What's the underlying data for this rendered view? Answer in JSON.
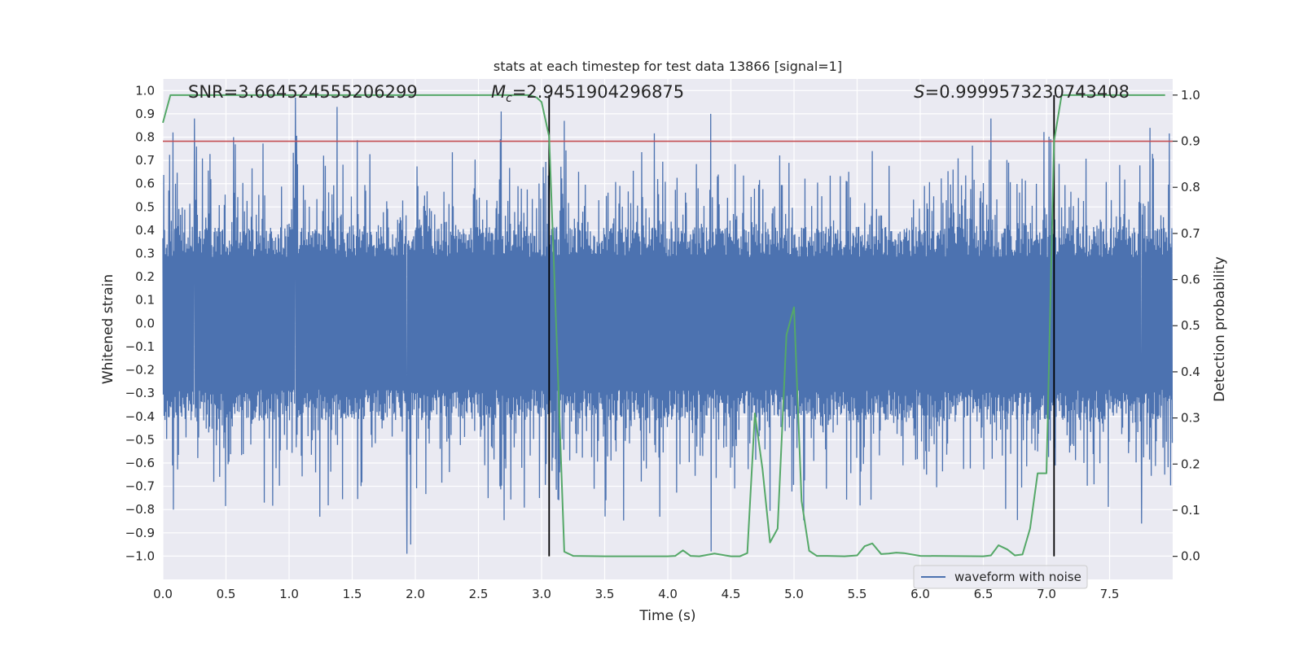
{
  "chart_data": {
    "type": "line",
    "title": "stats at each timestep for test data 13866 [signal=1]",
    "xlabel": "Time (s)",
    "ylabel_left": "Whitened strain",
    "ylabel_right": "Detection probability",
    "xlim": [
      0.0,
      8.0
    ],
    "ylim_left": [
      -1.1,
      1.05
    ],
    "ylim_right": [
      -0.05,
      1.035
    ],
    "x_ticks": [
      0.0,
      0.5,
      1.0,
      1.5,
      2.0,
      2.5,
      3.0,
      3.5,
      4.0,
      4.5,
      5.0,
      5.5,
      6.0,
      6.5,
      7.0,
      7.5
    ],
    "x_tick_labels": [
      "0.0",
      "0.5",
      "1.0",
      "1.5",
      "2.0",
      "2.5",
      "3.0",
      "3.5",
      "4.0",
      "4.5",
      "5.0",
      "5.5",
      "6.0",
      "6.5",
      "7.0",
      "7.5"
    ],
    "y_left_ticks": [
      -1.0,
      -0.9,
      -0.8,
      -0.7,
      -0.6,
      -0.5,
      -0.4,
      -0.3,
      -0.2,
      -0.1,
      0.0,
      0.1,
      0.2,
      0.3,
      0.4,
      0.5,
      0.6,
      0.7,
      0.8,
      0.9,
      1.0
    ],
    "y_left_tick_labels": [
      "−1.0",
      "−0.9",
      "−0.8",
      "−0.7",
      "−0.6",
      "−0.5",
      "−0.4",
      "−0.3",
      "−0.2",
      "−0.1",
      "0.0",
      "0.1",
      "0.2",
      "0.3",
      "0.4",
      "0.5",
      "0.6",
      "0.7",
      "0.8",
      "0.9",
      "1.0"
    ],
    "y_right_ticks": [
      0.0,
      0.1,
      0.2,
      0.3,
      0.4,
      0.5,
      0.6,
      0.7,
      0.8,
      0.9,
      1.0
    ],
    "y_right_tick_labels": [
      "0.0",
      "0.1",
      "0.2",
      "0.3",
      "0.4",
      "0.5",
      "0.6",
      "0.7",
      "0.8",
      "0.9",
      "1.0"
    ],
    "annotations": {
      "snr": "SNR=3.664524555206299",
      "mc_symbol": "M",
      "mc_sub": "c",
      "mc_value": "=2.9451904296875",
      "s_symbol": "S",
      "s_value": "=0.9999573230743408"
    },
    "threshold_line": {
      "axis": "right",
      "value": 0.9,
      "color": "#c44e52"
    },
    "vertical_lines": {
      "x": [
        3.06,
        7.06
      ],
      "color": "#000000"
    },
    "series": [
      {
        "name": "waveform with noise",
        "axis": "left",
        "color": "#4c72b0",
        "kind": "noise",
        "duration": 8.0,
        "core_abs_max": 0.38,
        "peak_positive_approx": 0.97,
        "peak_negative_approx": -0.99,
        "notable_peaks": [
          [
            0.08,
            0.82
          ],
          [
            0.25,
            0.88
          ],
          [
            1.05,
            0.97
          ],
          [
            1.38,
            0.93
          ],
          [
            2.68,
            0.91
          ],
          [
            3.18,
            0.87
          ],
          [
            4.34,
            0.9
          ],
          [
            6.56,
            0.88
          ],
          [
            7.82,
            0.84
          ]
        ],
        "notable_troughs": [
          [
            0.08,
            -0.8
          ],
          [
            0.8,
            -0.77
          ],
          [
            1.93,
            -0.99
          ],
          [
            1.96,
            -0.95
          ],
          [
            3.5,
            -0.83
          ],
          [
            4.34,
            -0.98
          ],
          [
            7.75,
            -0.86
          ]
        ]
      },
      {
        "name": "detection probability",
        "axis": "right",
        "color": "#55a868",
        "x": [
          0.0,
          0.06,
          0.2,
          0.5,
          1.0,
          1.5,
          2.0,
          2.5,
          2.9,
          2.96,
          3.0,
          3.06,
          3.12,
          3.18,
          3.25,
          3.5,
          4.0,
          4.06,
          4.12,
          4.18,
          4.25,
          4.37,
          4.5,
          4.57,
          4.63,
          4.69,
          4.75,
          4.81,
          4.87,
          4.94,
          5.0,
          5.06,
          5.12,
          5.18,
          5.25,
          5.4,
          5.5,
          5.56,
          5.62,
          5.69,
          5.75,
          5.81,
          5.87,
          6.0,
          6.5,
          6.56,
          6.62,
          6.69,
          6.75,
          6.81,
          6.87,
          6.93,
          7.0,
          7.06,
          7.12,
          7.25,
          7.5,
          7.94
        ],
        "values": [
          0.94,
          1.0,
          1.0,
          1.0,
          1.0,
          1.0,
          1.0,
          1.0,
          1.0,
          0.995,
          0.985,
          0.91,
          0.47,
          0.01,
          0.001,
          0.0,
          0.0,
          0.001,
          0.013,
          0.001,
          0.0,
          0.006,
          0.0,
          0.0,
          0.007,
          0.31,
          0.19,
          0.03,
          0.06,
          0.48,
          0.54,
          0.12,
          0.012,
          0.001,
          0.001,
          0.0,
          0.002,
          0.022,
          0.028,
          0.005,
          0.006,
          0.008,
          0.007,
          0.001,
          0.0,
          0.002,
          0.024,
          0.015,
          0.002,
          0.004,
          0.06,
          0.18,
          0.18,
          0.9,
          1.0,
          1.0,
          1.0,
          1.0
        ]
      }
    ],
    "legend": {
      "entries": [
        "waveform with noise"
      ],
      "location": "lower-right"
    },
    "style": {
      "grid": true,
      "background": "#eaeaf2",
      "grid_color": "#ffffff"
    }
  }
}
